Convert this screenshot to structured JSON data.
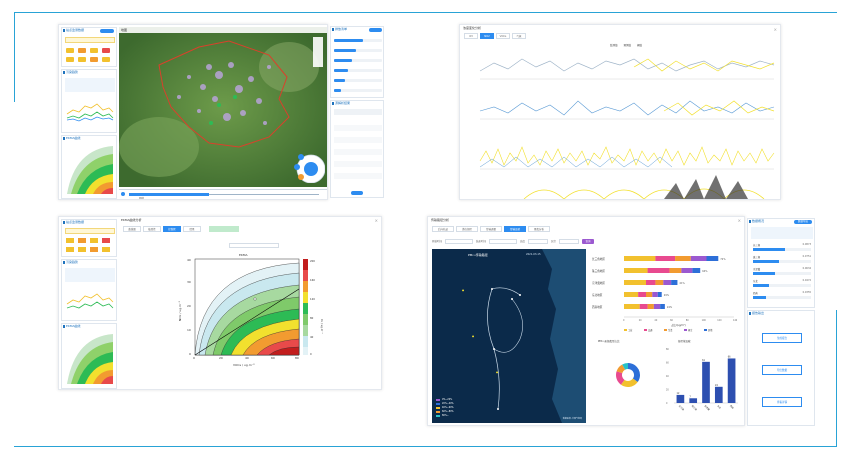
{
  "panel1": {
    "left_cards": [
      {
        "title": "站点监测数据"
      },
      {
        "title": "污染趋势"
      },
      {
        "title": "EKMA曲线"
      }
    ],
    "right_cards": [
      {
        "title": "排放清单"
      },
      {
        "title": "源解析结果"
      }
    ],
    "bottom_legend": "图例"
  },
  "panel2": {
    "title": "浓度变化分析",
    "tabs": [
      "O3",
      "NO2",
      "VOCs",
      "气象"
    ],
    "legend_items": [
      "监测值",
      "预测值",
      "阈值"
    ]
  },
  "panel3": {
    "title": "EKMA曲线分析",
    "tabs": [
      "曲线图",
      "敏感性",
      "控制区",
      "情景"
    ],
    "plot_title": "EKMA",
    "xlabel": "VOCs / ug·m⁻³",
    "ylabel": "NOx / ug·m⁻³",
    "cbar_label": "O₃ / ug·m⁻³",
    "xticks": [
      "0",
      "20",
      "40",
      "60",
      "80"
    ],
    "yticks": [
      "0",
      "10",
      "20",
      "30",
      "40"
    ],
    "cbar_ticks": [
      "200",
      "160",
      "120",
      "80",
      "40",
      "0"
    ]
  },
  "panel4": {
    "title": "传输路径分析",
    "tabs": [
      "后向轨迹",
      "潜在源区",
      "传输通量",
      "传输贡献",
      "聚类分析"
    ],
    "filter_labels": [
      "开始时间",
      "结束时间",
      "高度",
      "层次"
    ],
    "query_button": "查询",
    "map_title": "PM₂.₅传输路径",
    "map_time": "2021-03-15",
    "map_legend": [
      "0%~20%",
      "20%~40%",
      "40%~60%",
      "60%~80%",
      "80%~"
    ],
    "source_label": "数据来源: 中国气象局",
    "bar_chart": {
      "type": "bar",
      "orientation": "horizontal",
      "categories": [
        "长三角地区",
        "珠三角地区",
        "京津冀地区",
        "东北地区",
        "西南地区"
      ],
      "series": [
        {
          "name": "工业",
          "values": [
            40,
            30,
            28,
            18,
            20
          ]
        },
        {
          "name": "交通",
          "values": [
            25,
            28,
            12,
            10,
            10
          ]
        },
        {
          "name": "生活",
          "values": [
            20,
            15,
            10,
            8,
            8
          ]
        },
        {
          "name": "扬尘",
          "values": [
            20,
            14,
            10,
            7,
            8
          ]
        },
        {
          "name": "其他",
          "values": [
            15,
            10,
            8,
            5,
            6
          ]
        }
      ],
      "totals_labels": [
        "72%",
        "64%",
        "41%",
        "29%",
        "24%"
      ],
      "xlabel": "占比/(ug/m³)",
      "xticks": [
        "0",
        "20",
        "40",
        "60",
        "80",
        "100",
        "120",
        "140"
      ],
      "legend_colors": [
        "#f2c12e",
        "#e84a8f",
        "#f29b30",
        "#9b59d0",
        "#2d6fd8"
      ]
    },
    "pie_chart": {
      "type": "pie",
      "title": "PM₂.₅来源类型占比",
      "values": [
        35,
        25,
        20,
        12,
        8
      ],
      "colors": [
        "#2d6fd8",
        "#f2c12e",
        "#e84a8f",
        "#f29b30",
        "#27c2c8"
      ]
    },
    "col_chart": {
      "type": "bar",
      "title": "各区域贡献",
      "categories": [
        "长三角",
        "珠三角",
        "京津冀",
        "东北",
        "西南"
      ],
      "values": [
        12,
        7,
        61,
        24,
        66
      ],
      "value_labels": [
        "12",
        "7",
        "61",
        "24",
        "66"
      ],
      "ylim": [
        0,
        80
      ],
      "yticks": [
        "0",
        "20",
        "40",
        "60",
        "80"
      ]
    },
    "right_panel": {
      "header": "数据概况",
      "header_btn": "数据导出",
      "items": [
        {
          "label": "长三角",
          "value": "0.0873",
          "fill": 0.55
        },
        {
          "label": "珠三角",
          "value": "0.0751",
          "fill": 0.45
        },
        {
          "label": "京津冀",
          "value": "0.0634",
          "fill": 0.38
        },
        {
          "label": "东北",
          "value": "0.0472",
          "fill": 0.28
        },
        {
          "label": "西南",
          "value": "0.0355",
          "fill": 0.22
        }
      ],
      "section2": "报告输出",
      "buttons": [
        "生成报告",
        "导出数据",
        "查看详情"
      ]
    }
  }
}
